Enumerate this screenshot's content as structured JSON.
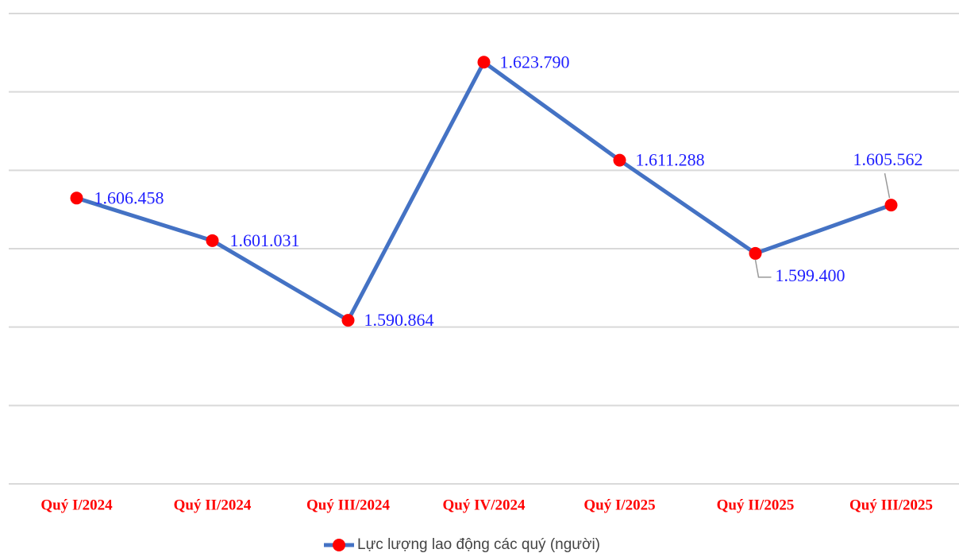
{
  "chart_data": {
    "type": "line",
    "categories": [
      "Quý I/2024",
      "Quý II/2024",
      "Quý III/2024",
      "Quý IV/2024",
      "Quý I/2025",
      "Quý II/2025",
      "Quý III/2025"
    ],
    "series": [
      {
        "name": "Lực lượng lao động các quý (người)",
        "color": "#4472c4",
        "marker_color": "#ff0000",
        "values": [
          1606458,
          1601031,
          1590864,
          1623790,
          1611288,
          1599400,
          1605562
        ],
        "value_labels": [
          "1.606.458",
          "1.601.031",
          "1.590.864",
          "1.623.790",
          "1.611.288",
          "1.599.400",
          "1.605.562"
        ]
      }
    ],
    "ylim": [
      1570000,
      1630000
    ],
    "yticks": [
      1570000,
      1580000,
      1590000,
      1600000,
      1610000,
      1620000,
      1630000
    ],
    "grid": true,
    "legend": "bottom"
  }
}
